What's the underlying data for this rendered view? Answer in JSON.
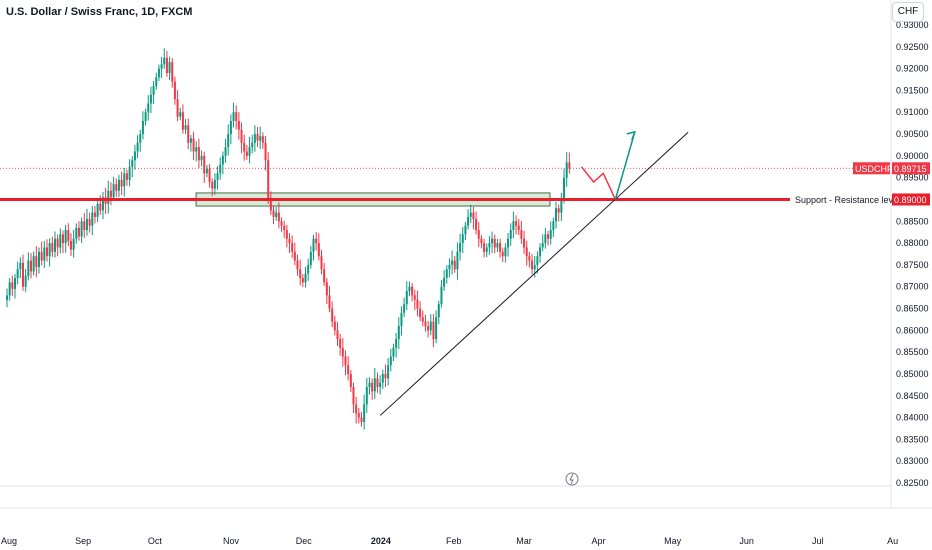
{
  "header": {
    "symbol_title": "U.S. Dollar / Swiss Franc, 1D, FXCM",
    "currency": "CHF"
  },
  "badges": {
    "symbol": "USDCHF",
    "price": "0.89715",
    "support_label": "Support - Resistance level",
    "support_price": "0.89000"
  },
  "colors": {
    "up": "#089981",
    "down": "#f23645",
    "support_line": "#e91e2b",
    "zone_fill": "#c8e6c9",
    "zone_border": "#4a6b4a",
    "arrow_green": "#089981",
    "arrow_red": "#f23645",
    "trendline": "#131722"
  },
  "chart_data": {
    "type": "candlestick",
    "title": "U.S. Dollar / Swiss Franc, 1D, FXCM",
    "ylim": [
      0.8225,
      0.9325
    ],
    "y_ticks": [
      0.93,
      0.925,
      0.92,
      0.915,
      0.91,
      0.905,
      0.9,
      0.895,
      0.89,
      0.885,
      0.88,
      0.875,
      0.87,
      0.865,
      0.86,
      0.855,
      0.85,
      0.845,
      0.84,
      0.835,
      0.83,
      0.825
    ],
    "y_tick_labels": [
      "0.93000",
      "0.92500",
      "0.92000",
      "0.91500",
      "0.91000",
      "0.90500",
      "0.90000",
      "0.89500",
      "0.89000",
      "0.88500",
      "0.88000",
      "0.87500",
      "0.87000",
      "0.86500",
      "0.86000",
      "0.85500",
      "0.85000",
      "0.84500",
      "0.84000",
      "0.83500",
      "0.83000",
      "0.82500"
    ],
    "x_labels": [
      "Aug",
      "Sep",
      "Oct",
      "Nov",
      "Dec",
      "2024",
      "Feb",
      "Mar",
      "Apr",
      "May",
      "Jun",
      "Jul",
      "Au"
    ],
    "x_label_days": [
      0,
      31,
      61,
      92,
      122,
      153,
      184,
      213,
      244,
      274,
      305,
      335,
      366
    ],
    "last_price": 0.89715,
    "support_level": 0.89,
    "zone": {
      "start_day": 78,
      "end_day": 224,
      "low": 0.8885,
      "high": 0.8915
    },
    "trendline": {
      "start": {
        "day": 154,
        "price": 0.8405
      },
      "end": {
        "day": 281,
        "price": 0.9054
      }
    },
    "projection_red": [
      {
        "day": 237,
        "price": 0.8975
      },
      {
        "day": 242,
        "price": 0.894
      },
      {
        "day": 246,
        "price": 0.896
      },
      {
        "day": 251,
        "price": 0.89
      }
    ],
    "projection_green": [
      {
        "day": 251,
        "price": 0.89
      },
      {
        "day": 259,
        "price": 0.9055
      }
    ],
    "candles_close": [
      0.868,
      0.871,
      0.8695,
      0.872,
      0.874,
      0.8755,
      0.87,
      0.8725,
      0.876,
      0.8735,
      0.877,
      0.8745,
      0.878,
      0.876,
      0.879,
      0.877,
      0.88,
      0.878,
      0.881,
      0.879,
      0.882,
      0.88,
      0.883,
      0.8805,
      0.8785,
      0.881,
      0.8835,
      0.8815,
      0.885,
      0.883,
      0.8855,
      0.884,
      0.887,
      0.886,
      0.889,
      0.8875,
      0.8905,
      0.889,
      0.892,
      0.8905,
      0.8935,
      0.892,
      0.8945,
      0.893,
      0.896,
      0.8945,
      0.8975,
      0.899,
      0.901,
      0.903,
      0.905,
      0.908,
      0.91,
      0.912,
      0.914,
      0.916,
      0.918,
      0.92,
      0.921,
      0.9225,
      0.919,
      0.9215,
      0.917,
      0.913,
      0.909,
      0.91,
      0.906,
      0.907,
      0.903,
      0.904,
      0.901,
      0.902,
      0.899,
      0.9,
      0.896,
      0.897,
      0.894,
      0.8925,
      0.8945,
      0.896,
      0.898,
      0.9,
      0.902,
      0.905,
      0.908,
      0.91,
      0.908,
      0.906,
      0.903,
      0.901,
      0.9,
      0.902,
      0.903,
      0.905,
      0.9035,
      0.9045,
      0.903,
      0.899,
      0.89,
      0.8875,
      0.886,
      0.887,
      0.885,
      0.884,
      0.883,
      0.881,
      0.88,
      0.878,
      0.876,
      0.874,
      0.872,
      0.871,
      0.873,
      0.875,
      0.878,
      0.881,
      0.88,
      0.877,
      0.874,
      0.871,
      0.868,
      0.865,
      0.862,
      0.86,
      0.858,
      0.856,
      0.854,
      0.852,
      0.85,
      0.847,
      0.843,
      0.841,
      0.84,
      0.839,
      0.843,
      0.847,
      0.848,
      0.846,
      0.849,
      0.847,
      0.848,
      0.85,
      0.849,
      0.852,
      0.854,
      0.856,
      0.858,
      0.861,
      0.864,
      0.866,
      0.869,
      0.87,
      0.868,
      0.867,
      0.865,
      0.863,
      0.862,
      0.861,
      0.86,
      0.862,
      0.858,
      0.863,
      0.866,
      0.87,
      0.872,
      0.874,
      0.875,
      0.876,
      0.874,
      0.878,
      0.88,
      0.882,
      0.884,
      0.886,
      0.887,
      0.8855,
      0.883,
      0.881,
      0.88,
      0.878,
      0.879,
      0.88,
      0.881,
      0.879,
      0.88,
      0.878,
      0.877,
      0.879,
      0.881,
      0.883,
      0.885,
      0.884,
      0.883,
      0.881,
      0.879,
      0.877,
      0.876,
      0.874,
      0.875,
      0.877,
      0.879,
      0.88,
      0.882,
      0.881,
      0.883,
      0.885,
      0.888,
      0.887,
      0.89,
      0.895,
      0.8985,
      0.8971
    ]
  }
}
